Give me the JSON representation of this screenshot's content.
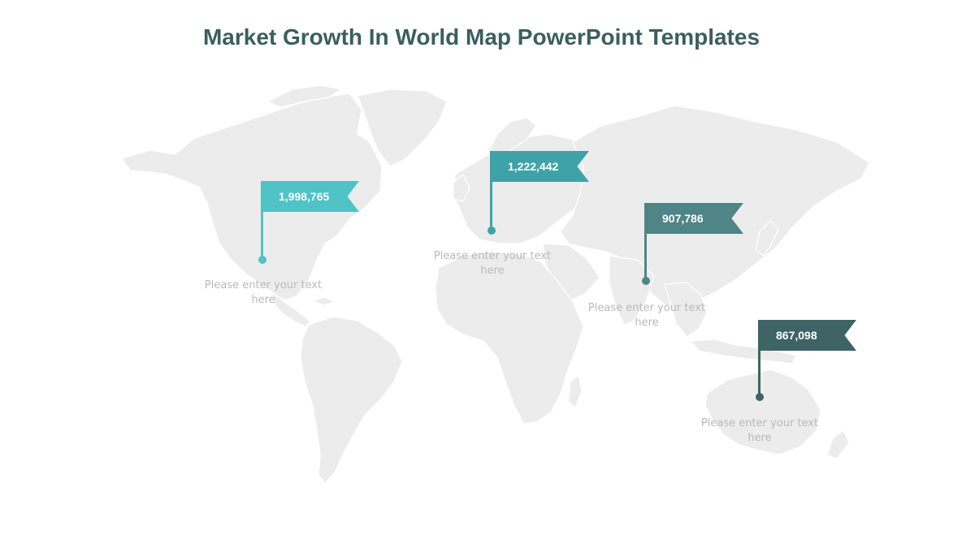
{
  "title": "Market Growth In World Map PowerPoint Templates",
  "map": {
    "land_color": "#ececec",
    "border_color": "#ffffff"
  },
  "markers": [
    {
      "id": "north-america",
      "value": "1,998,765",
      "caption": "Please enter your text here",
      "color": "#4fc3c6"
    },
    {
      "id": "europe",
      "value": "1,222,442",
      "caption": "Please enter your text here",
      "color": "#3ea3a8"
    },
    {
      "id": "asia",
      "value": "907,786",
      "caption": "Please enter your text here",
      "color": "#4f8587"
    },
    {
      "id": "australia",
      "value": "867,098",
      "caption": "Please enter your text here",
      "color": "#3e6465"
    }
  ]
}
